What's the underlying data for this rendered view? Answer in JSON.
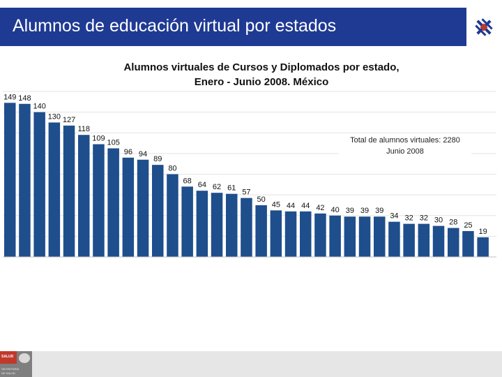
{
  "header": {
    "title": "Alumnos de educación virtual por estados"
  },
  "footer": {
    "badge": "SALUD",
    "sub1": "SECRETARÍA",
    "sub2": "DE SALUD"
  },
  "colors": {
    "header_bg": "#1f3a93",
    "bar": "#1f4e8c",
    "logo_accent": "#c0392b"
  },
  "chart_data": {
    "type": "bar",
    "title_line1": "Alumnos virtuales de Cursos y Diplomados por estado,",
    "title_line2": "Enero - Junio 2008. México",
    "annotation_line1": "Total de alumnos virtuales: 2280",
    "annotation_line2": "Junio 2008",
    "xlabel": "",
    "ylabel": "",
    "ylim": [
      0,
      160
    ],
    "grid": true,
    "values": [
      149,
      148,
      140,
      130,
      127,
      118,
      109,
      105,
      96,
      94,
      89,
      80,
      68,
      64,
      62,
      61,
      57,
      50,
      45,
      44,
      44,
      42,
      40,
      39,
      39,
      39,
      34,
      32,
      32,
      30,
      28,
      25,
      19
    ]
  }
}
